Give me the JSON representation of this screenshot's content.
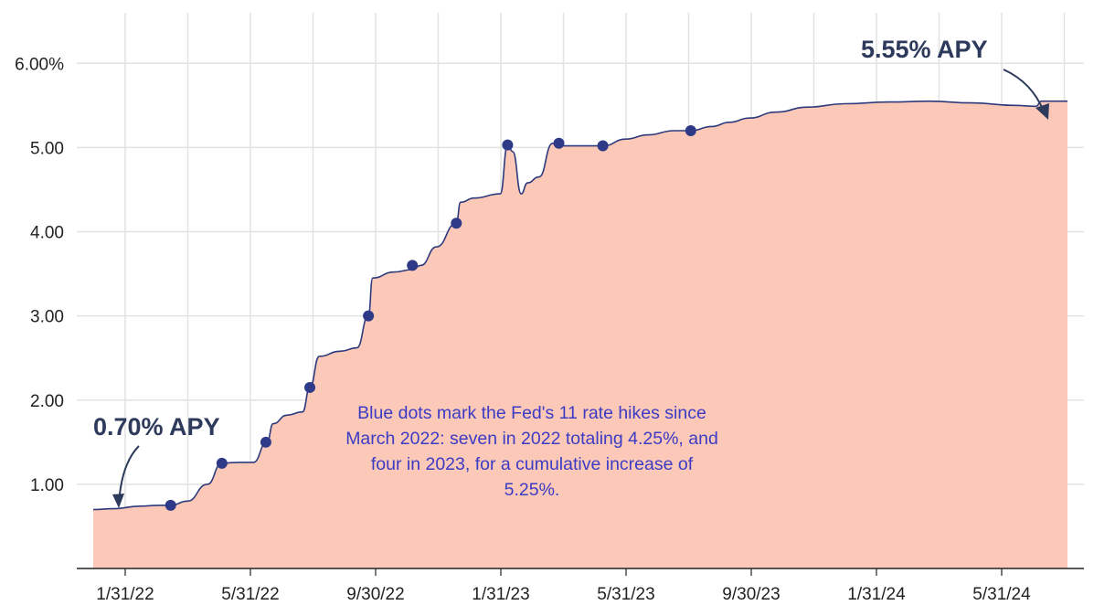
{
  "chart_data": {
    "type": "area",
    "x_tick_labels": [
      "1/31/22",
      "5/31/22",
      "9/30/22",
      "1/31/23",
      "5/31/23",
      "9/30/23",
      "1/31/24",
      "5/31/24"
    ],
    "y_tick_labels": [
      "1.00",
      "2.00",
      "3.00",
      "4.00",
      "5.00",
      "6.00%"
    ],
    "y_ticks": [
      1,
      2,
      3,
      4,
      5,
      6
    ],
    "ylim": [
      0,
      6.6
    ],
    "x_range": [
      "2022-01-01",
      "2024-07-20"
    ],
    "grid": true,
    "fill_color": "#fcc8b8",
    "line_color": "#2d3a7c",
    "dot_color": "#2e3a87",
    "series": [
      {
        "x": [
          "2022-01-01",
          "2022-01-20",
          "2022-02-15",
          "2022-03-05",
          "2022-03-16",
          "2022-04-01",
          "2022-04-20",
          "2022-05-04",
          "2022-05-20",
          "2022-06-03",
          "2022-06-16",
          "2022-06-22",
          "2022-07-05",
          "2022-07-20",
          "2022-07-27",
          "2022-08-05",
          "2022-08-25",
          "2022-09-10",
          "2022-09-21",
          "2022-09-25",
          "2022-10-15",
          "2022-11-02",
          "2022-11-10",
          "2022-11-25",
          "2022-12-14",
          "2022-12-18",
          "2022-12-31",
          "2023-01-25",
          "2023-02-01",
          "2023-02-06",
          "2023-02-14",
          "2023-02-20",
          "2023-03-03",
          "2023-03-16",
          "2023-03-22",
          "2023-04-10",
          "2023-05-03",
          "2023-05-25",
          "2023-06-15",
          "2023-07-10",
          "2023-07-26",
          "2023-08-15",
          "2023-09-01",
          "2023-09-20",
          "2023-10-15",
          "2023-11-15",
          "2023-12-20",
          "2024-02-01",
          "2024-03-10",
          "2024-04-20",
          "2024-05-30",
          "2024-06-20",
          "2024-06-25",
          "2024-07-20"
        ],
        "y": [
          0.7,
          0.71,
          0.74,
          0.75,
          0.75,
          0.8,
          1.0,
          1.25,
          1.26,
          1.26,
          1.5,
          1.72,
          1.82,
          1.86,
          2.15,
          2.52,
          2.58,
          2.62,
          3.0,
          3.45,
          3.52,
          3.55,
          3.6,
          3.82,
          4.1,
          4.35,
          4.4,
          4.45,
          5.03,
          4.95,
          4.45,
          4.58,
          4.65,
          5.05,
          5.02,
          5.02,
          5.02,
          5.1,
          5.15,
          5.2,
          5.2,
          5.25,
          5.3,
          5.35,
          5.42,
          5.48,
          5.52,
          5.54,
          5.55,
          5.53,
          5.5,
          5.49,
          5.55,
          5.55
        ]
      }
    ],
    "rate_hike_dots": {
      "x": [
        "2022-03-16",
        "2022-05-04",
        "2022-06-15",
        "2022-07-27",
        "2022-09-21",
        "2022-11-02",
        "2022-12-14",
        "2023-02-01",
        "2023-03-22",
        "2023-05-03",
        "2023-07-26"
      ],
      "y": [
        0.75,
        1.25,
        1.5,
        2.15,
        3.0,
        3.6,
        4.1,
        5.03,
        5.05,
        5.02,
        5.2
      ]
    },
    "annotations": {
      "start_callout": "0.70% APY",
      "end_callout": "5.55% APY",
      "note_lines": [
        "Blue dots mark the Fed's 11 rate hikes since",
        "March 2022: seven in 2022 totaling 4.25%, and",
        "four in 2023, for a cumulative increase of",
        "5.25%."
      ]
    }
  }
}
